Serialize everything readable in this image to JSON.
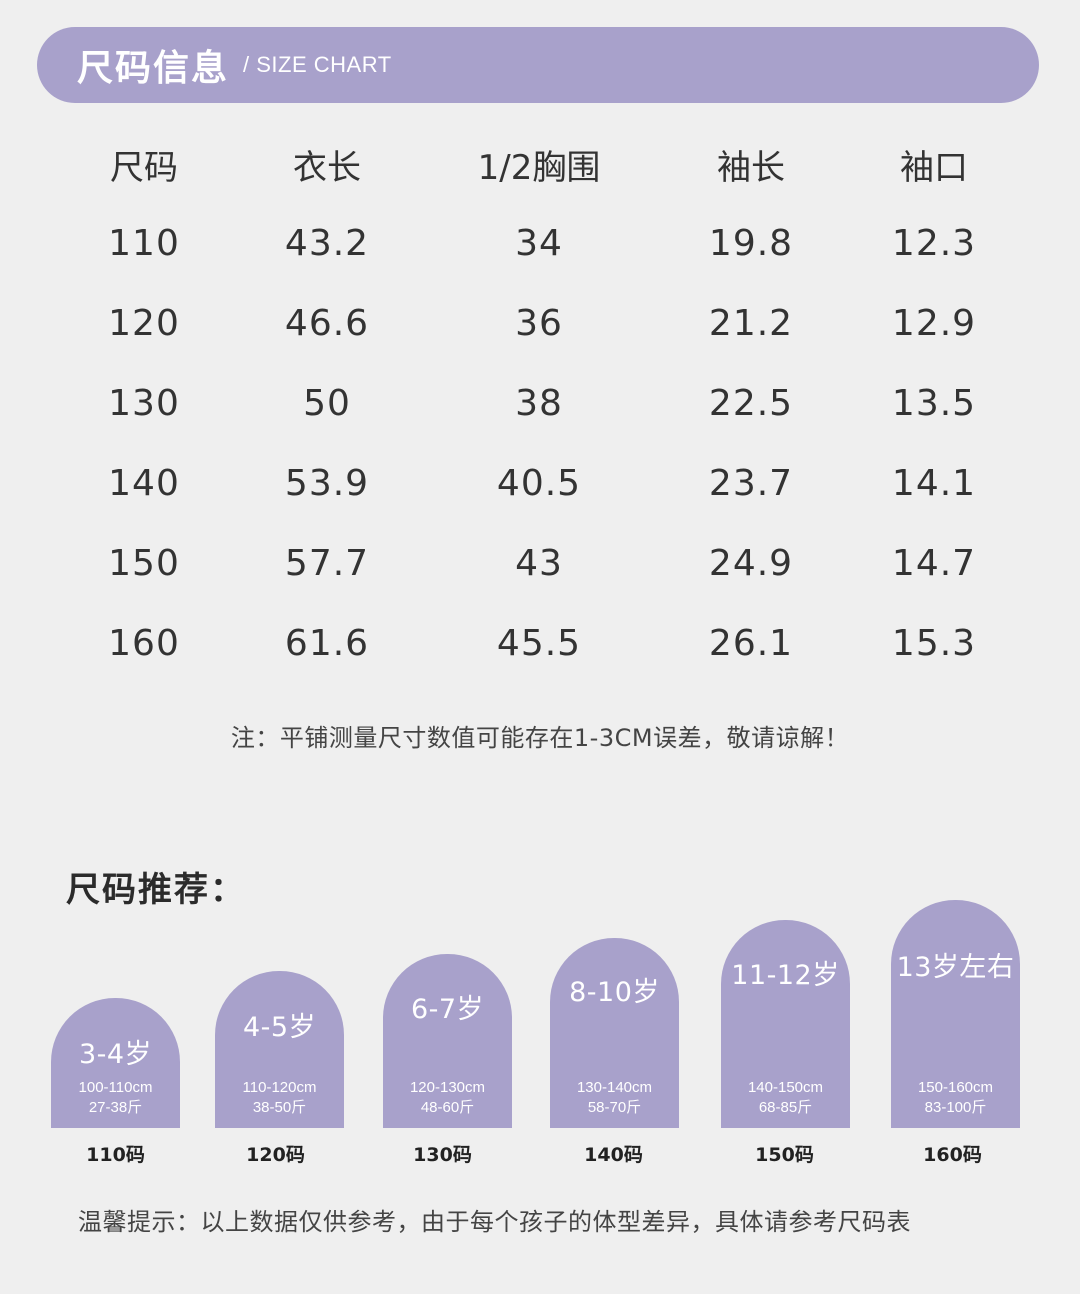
{
  "header": {
    "title": "尺码信息",
    "subtitle": "/ SIZE CHART"
  },
  "table": {
    "columns": [
      "尺码",
      "衣长",
      "1/2胸围",
      "袖长",
      "袖口"
    ],
    "rows": [
      [
        "110",
        "43.2",
        "34",
        "19.8",
        "12.3"
      ],
      [
        "120",
        "46.6",
        "36",
        "21.2",
        "12.9"
      ],
      [
        "130",
        "50",
        "38",
        "22.5",
        "13.5"
      ],
      [
        "140",
        "53.9",
        "40.5",
        "23.7",
        "14.1"
      ],
      [
        "150",
        "57.7",
        "43",
        "24.9",
        "14.7"
      ],
      [
        "160",
        "61.6",
        "45.5",
        "26.1",
        "15.3"
      ]
    ]
  },
  "note": "注：平铺测量尺寸数值可能存在1-3CM误差，敬请谅解！",
  "recommend": {
    "title": "尺码推荐：",
    "cards": [
      {
        "age": "3-4岁",
        "height": "100-110cm",
        "weight": "27-38斤",
        "size": "110码"
      },
      {
        "age": "4-5岁",
        "height": "110-120cm",
        "weight": "38-50斤",
        "size": "120码"
      },
      {
        "age": "6-7岁",
        "height": "120-130cm",
        "weight": "48-60斤",
        "size": "130码"
      },
      {
        "age": "8-10岁",
        "height": "130-140cm",
        "weight": "58-70斤",
        "size": "140码"
      },
      {
        "age": "11-12岁",
        "height": "140-150cm",
        "weight": "68-85斤",
        "size": "150码"
      },
      {
        "age": "13岁左右",
        "height": "150-160cm",
        "weight": "83-100斤",
        "size": "160码"
      }
    ]
  },
  "tip": "温馨提示：以上数据仅供参考，由于每个孩子的体型差异，具体请参考尺码表",
  "colors": {
    "accent": "#a8a1cb",
    "background": "#efefef",
    "text": "#333333"
  }
}
